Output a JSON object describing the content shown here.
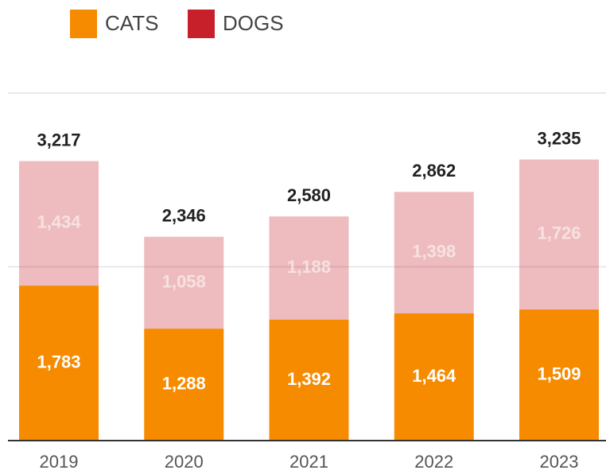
{
  "chart_data": {
    "type": "stacked_bar",
    "categories": [
      "2019",
      "2020",
      "2021",
      "2022",
      "2023"
    ],
    "series": [
      {
        "name": "CATS",
        "color": "#f68b00",
        "values": [
          1783,
          1288,
          1392,
          1464,
          1509
        ],
        "value_labels": [
          "1,783",
          "1,288",
          "1,392",
          "1,464",
          "1,509"
        ]
      },
      {
        "name": "DOGS",
        "color": "#c8202a",
        "values": [
          1434,
          1058,
          1188,
          1398,
          1726
        ],
        "value_labels": [
          "1,434",
          "1,058",
          "1,188",
          "1,398",
          "1,726"
        ]
      }
    ],
    "totals": [
      3217,
      2346,
      2580,
      2862,
      3235
    ],
    "total_labels": [
      "3,217",
      "2,346",
      "2,580",
      "2,862",
      "3,235"
    ],
    "ylim": [
      0,
      4000
    ],
    "yticks": [
      2000,
      4000
    ],
    "grid": true,
    "legend": "top"
  }
}
